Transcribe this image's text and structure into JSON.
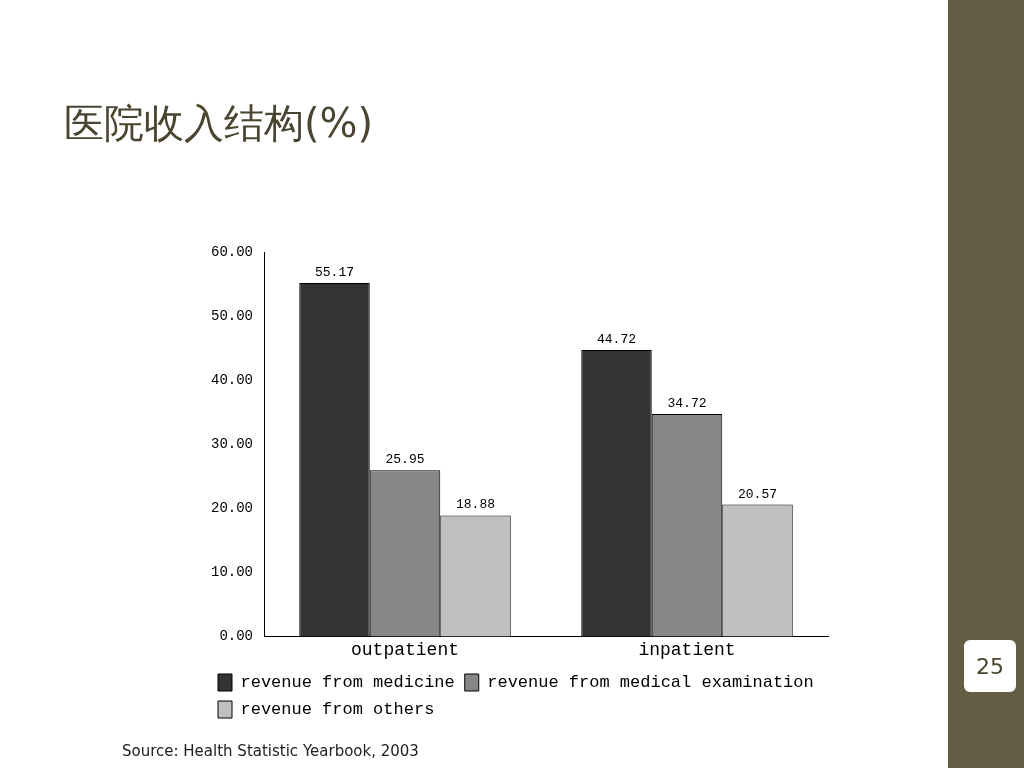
{
  "chart_data": {
    "type": "bar",
    "title": "医院收入结构(%)",
    "categories": [
      "outpatient",
      "inpatient"
    ],
    "series": [
      {
        "name": "revenue from medicine",
        "color": "#333333",
        "values": [
          55.17,
          44.72
        ]
      },
      {
        "name": "revenue from medical examination",
        "color": "#878787",
        "values": [
          25.95,
          34.72
        ]
      },
      {
        "name": "revenue from others",
        "color": "#c0c0c0",
        "values": [
          18.88,
          20.57
        ]
      }
    ],
    "ylim": [
      0,
      60
    ],
    "yticks": [
      {
        "value": 0,
        "label": "0.00"
      },
      {
        "value": 10,
        "label": "10.00"
      },
      {
        "value": 20,
        "label": "20.00"
      },
      {
        "value": 30,
        "label": "30.00"
      },
      {
        "value": 40,
        "label": "40.00"
      },
      {
        "value": 50,
        "label": "50.00"
      },
      {
        "value": 60,
        "label": "60.00"
      }
    ],
    "data_labels": true,
    "grid": false,
    "legend": "bottom",
    "annotations": [
      "Source: Health Statistic Yearbook, 2003",
      "25"
    ]
  }
}
